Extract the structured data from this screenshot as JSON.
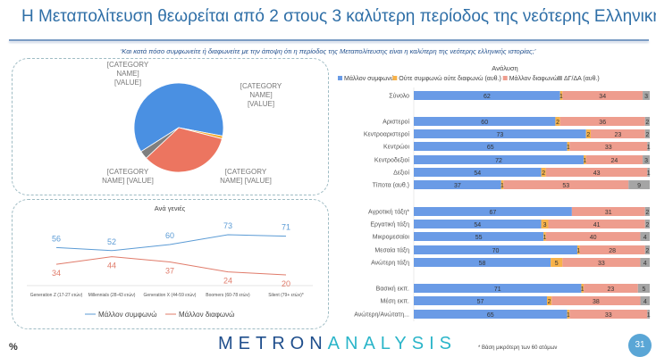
{
  "header": {
    "title": "Η Μεταπολίτευση θεωρείται από 2 στους 3 καλύτερη περίοδος της νεότερης Ελληνικής ιστορίας",
    "question": "‘Και κατά πόσο συμφωνείτε ή διαφωνείτε με την άποψη ότι η περίοδος της Μεταπολίτευσης είναι η καλύτερη της νεότερης ελληνικής ιστορίας;’"
  },
  "footer": {
    "percent": "%",
    "logo_a": "METRON",
    "logo_b": "ANALYSIS",
    "note": "* Βάση μικρότερη των 60 ατόμων",
    "page": "31"
  },
  "chart_data": [
    {
      "type": "pie",
      "labels": [
        "[CATEGORY NAME] [VALUE]",
        "[CATEGORY NAME] [VALUE]",
        "[CATEGORY NAME] [VALUE]",
        "[CATEGORY NAME] [VALUE]"
      ],
      "values": [
        62,
        1,
        34,
        3
      ],
      "colors": [
        "#4a90e2",
        "#f5a623",
        "#ec7560",
        "#7f7f7f"
      ]
    },
    {
      "type": "line",
      "title": "Ανά γενιές",
      "categories": [
        "Generation Z (17-27 ετών)",
        "Millennials (28-43 ετών)",
        "Generation X (44-59 ετών)",
        "Boomers (60-78 ετών)",
        "Silent (79+ ετών)*"
      ],
      "series": [
        {
          "name": "Μάλλον συμφωνώ",
          "values": [
            56,
            52,
            60,
            73,
            71
          ],
          "color": "#5b9bd5"
        },
        {
          "name": "Μάλλον διαφωνώ",
          "values": [
            34,
            44,
            37,
            24,
            20
          ],
          "color": "#e07b6a"
        }
      ]
    },
    {
      "type": "bar",
      "stacked": true,
      "orientation": "horizontal",
      "title": "Ανάλυση",
      "legend": "top",
      "categories": [
        "Σύνολο",
        "",
        "Αριστεροί",
        "Κεντροαριστεροί",
        "Κεντρώοι",
        "Κεντροδεξιοί",
        "Δεξιοί",
        "Τίποτα (αυθ.)",
        "",
        "Αγροτική τάξη*",
        "Εργατική τάξη",
        "Μικρομεσαίοι",
        "Μεσαία τάξη",
        "Ανώτερη τάξη",
        "",
        "Βασική εκπ.",
        "Μέση εκπ.",
        "Ανώτερη/Ανώτατη..."
      ],
      "series": [
        {
          "name": "Μάλλον συμφωνώ",
          "color": "#6a9be6",
          "values": [
            62,
            null,
            60,
            73,
            65,
            72,
            54,
            37,
            null,
            67,
            54,
            55,
            70,
            58,
            null,
            71,
            57,
            65
          ]
        },
        {
          "name": "Ούτε συμφωνώ ούτε διαφωνώ (αυθ.)",
          "color": "#f7b24a",
          "values": [
            1,
            null,
            2,
            2,
            1,
            1,
            2,
            1,
            null,
            0,
            3,
            1,
            1,
            5,
            null,
            1,
            2,
            1
          ]
        },
        {
          "name": "Μάλλον διαφωνώ",
          "color": "#ee9d8e",
          "values": [
            34,
            null,
            36,
            23,
            33,
            24,
            43,
            53,
            null,
            31,
            41,
            40,
            28,
            33,
            null,
            23,
            38,
            33
          ]
        },
        {
          "name": "ΔΓ/ΔΑ (αυθ.)",
          "color": "#a5a5a5",
          "values": [
            3,
            null,
            2,
            2,
            1,
            3,
            1,
            9,
            null,
            2,
            2,
            4,
            2,
            4,
            null,
            5,
            4,
            1
          ]
        }
      ]
    }
  ]
}
